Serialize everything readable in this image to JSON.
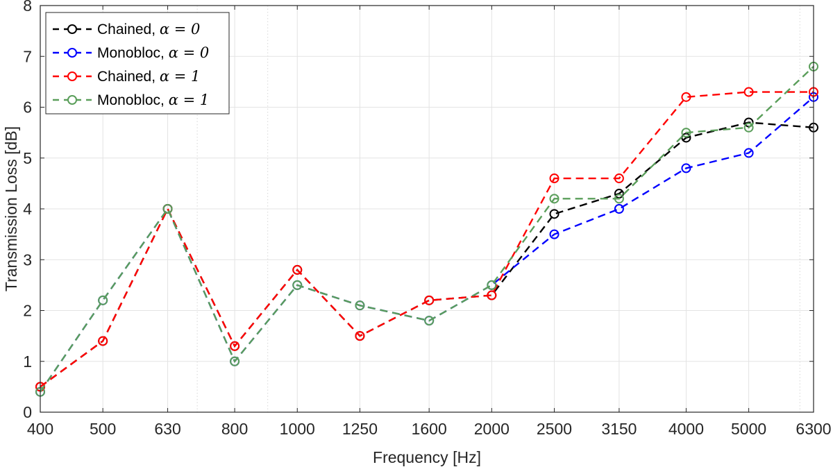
{
  "chart_data": {
    "type": "line",
    "title": "",
    "xlabel": "Frequency [Hz]",
    "ylabel": "Transmission Loss [dB]",
    "x_scale": "log",
    "categories": [
      "400",
      "500",
      "630",
      "800",
      "1000",
      "1250",
      "1600",
      "2000",
      "2500",
      "3150",
      "4000",
      "5000",
      "6300"
    ],
    "x": [
      400,
      500,
      630,
      800,
      1000,
      1250,
      1600,
      2000,
      2500,
      3150,
      4000,
      5000,
      6300
    ],
    "xlim": [
      400,
      6300
    ],
    "ylim": [
      0,
      8
    ],
    "yticks": [
      "0",
      "1",
      "2",
      "3",
      "4",
      "5",
      "6",
      "7",
      "8"
    ],
    "grid": true,
    "legend_position": "top-left",
    "series": [
      {
        "name": "Chained, ",
        "alpha_label": "α = 0",
        "color": "#000000",
        "values": [
          0.5,
          1.4,
          4.0,
          1.3,
          2.8,
          1.5,
          2.2,
          2.3,
          3.9,
          4.3,
          5.4,
          5.7,
          5.6
        ]
      },
      {
        "name": "Monobloc, ",
        "alpha_label": "α = 0",
        "color": "#0000ff",
        "values": [
          0.4,
          2.2,
          4.0,
          1.0,
          2.5,
          2.1,
          1.8,
          2.5,
          3.5,
          4.0,
          4.8,
          5.1,
          6.2
        ]
      },
      {
        "name": "Chained, ",
        "alpha_label": "α = 1",
        "color": "#ff0000",
        "values": [
          0.5,
          1.4,
          4.0,
          1.3,
          2.8,
          1.5,
          2.2,
          2.3,
          4.6,
          4.6,
          6.2,
          6.3,
          6.3
        ]
      },
      {
        "name": "Monobloc, ",
        "alpha_label": "α = 1",
        "color": "#5a9e5a",
        "values": [
          0.4,
          2.2,
          4.0,
          1.0,
          2.5,
          2.1,
          1.8,
          2.5,
          4.2,
          4.2,
          5.5,
          5.6,
          6.8
        ]
      }
    ]
  }
}
